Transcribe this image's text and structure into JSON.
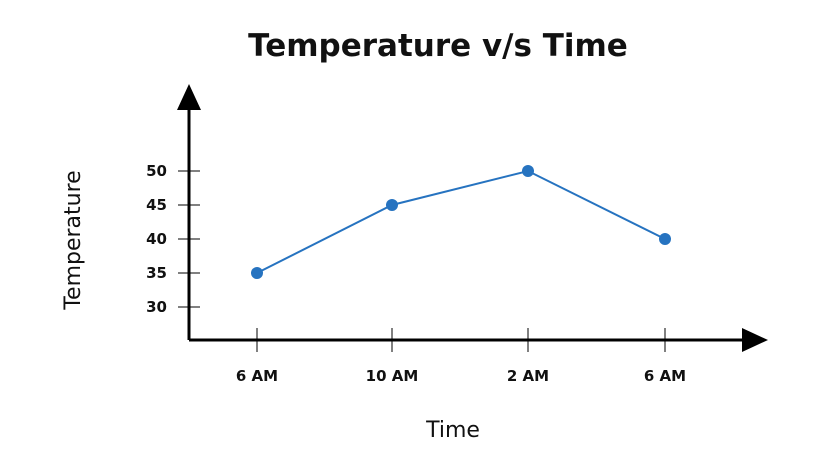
{
  "chart_data": {
    "type": "line",
    "title": "Temperature v/s Time",
    "xlabel": "Time",
    "ylabel": "Temperature",
    "categories": [
      "6 AM",
      "10 AM",
      "2 AM",
      "6 AM"
    ],
    "series": [
      {
        "values": [
          35,
          45,
          50,
          40
        ]
      }
    ],
    "yticks": [
      30,
      35,
      40,
      45,
      50
    ],
    "ylim": [
      20,
      50
    ],
    "grid": false,
    "legend": "none",
    "colors": {
      "line": "#2673c0",
      "marker": "#2673c0",
      "axis": "#000000",
      "text": "#111111"
    }
  }
}
